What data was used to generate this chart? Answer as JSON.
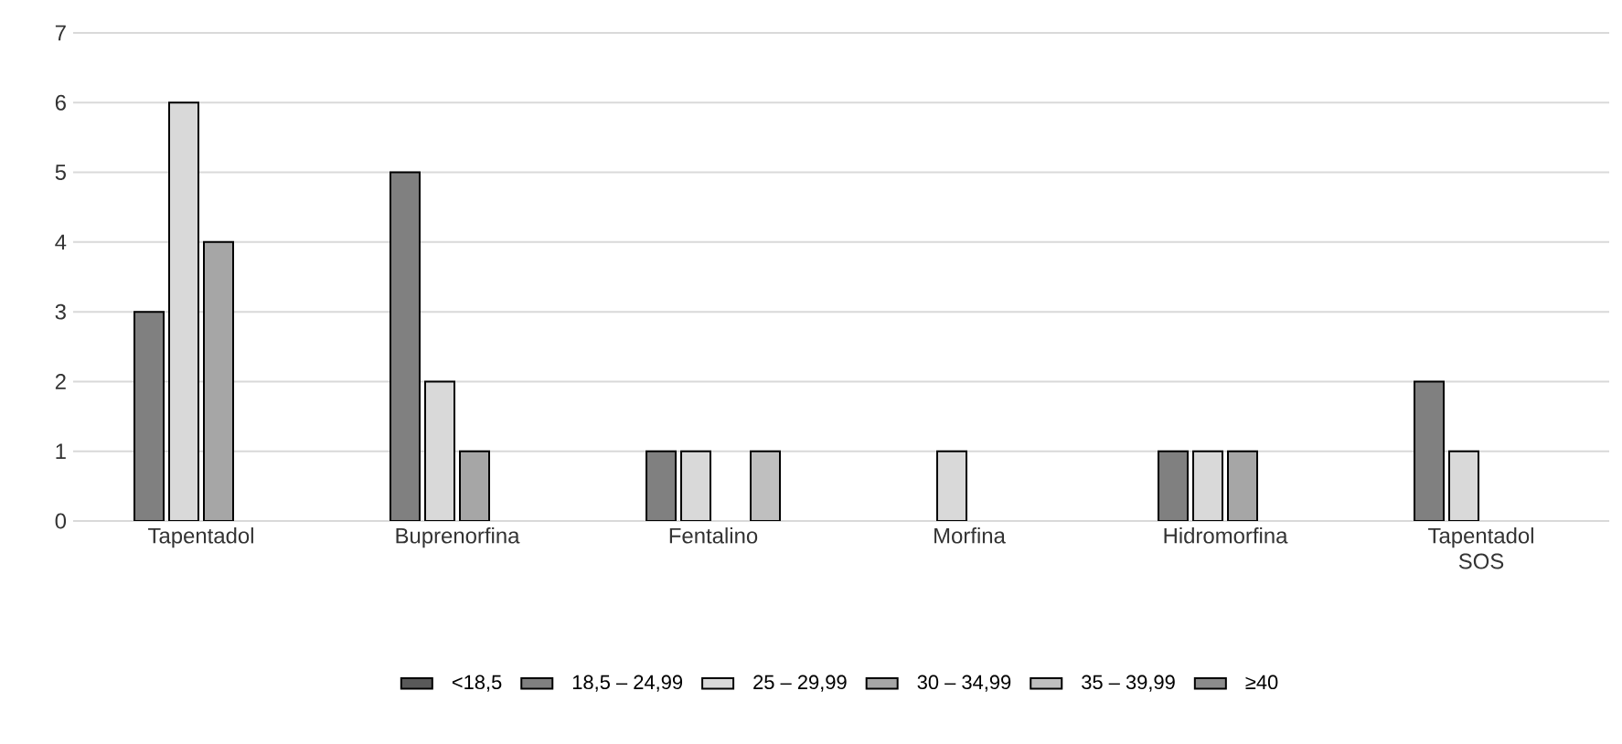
{
  "chart_data": {
    "type": "bar",
    "categories": [
      "Tapentadol",
      "Buprenorfina",
      "Fentalino",
      "Morfina",
      "Hidromorfina",
      "Tapentadol SOS"
    ],
    "series": [
      {
        "name": "<18,5",
        "color": "#595959",
        "values": [
          null,
          null,
          null,
          null,
          null,
          null
        ]
      },
      {
        "name": "18,5 – 24,99",
        "color": "#808080",
        "values": [
          3,
          5,
          1,
          null,
          1,
          2
        ]
      },
      {
        "name": "25 – 29,99",
        "color": "#d9d9d9",
        "values": [
          6,
          2,
          1,
          1,
          1,
          1
        ]
      },
      {
        "name": "30 – 34,99",
        "color": "#a6a6a6",
        "values": [
          4,
          1,
          null,
          null,
          1,
          null
        ]
      },
      {
        "name": "35 – 39,99",
        "color": "#bfbfbf",
        "values": [
          null,
          null,
          1,
          null,
          null,
          null
        ]
      },
      {
        "name": "≥40",
        "color": "#8c8c8c",
        "values": [
          null,
          null,
          null,
          null,
          null,
          null
        ]
      }
    ],
    "ylim": [
      0,
      7
    ],
    "yticks": [
      0,
      1,
      2,
      3,
      4,
      5,
      6,
      7
    ],
    "grid": "y",
    "legend": "bottom"
  }
}
